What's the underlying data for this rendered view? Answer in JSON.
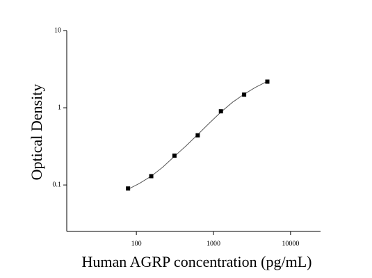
{
  "chart_data": {
    "type": "scatter",
    "x_label": "Human AGRP concentration (pg/mL)",
    "y_label": "Optical Density",
    "xlog": true,
    "ylog": true,
    "xlim": [
      12.5,
      24500
    ],
    "ylim": [
      0.025,
      10
    ],
    "xticks": [
      100,
      1000,
      10000
    ],
    "yticks": [
      0.1,
      1,
      10
    ],
    "series": [
      {
        "kind": "points",
        "color": "#000000",
        "x": [
          78,
          156,
          312,
          625,
          1250,
          2500,
          5000
        ],
        "values": [
          0.09,
          0.13,
          0.24,
          0.44,
          0.9,
          1.48,
          2.18
        ]
      },
      {
        "kind": "fit",
        "color": "#555555",
        "x": [
          78,
          110,
          156,
          220,
          312,
          440,
          625,
          880,
          1250,
          1770,
          2500,
          3540,
          5000
        ],
        "values": [
          0.088,
          0.105,
          0.13,
          0.17,
          0.235,
          0.32,
          0.45,
          0.63,
          0.88,
          1.18,
          1.5,
          1.85,
          2.2
        ]
      }
    ]
  }
}
